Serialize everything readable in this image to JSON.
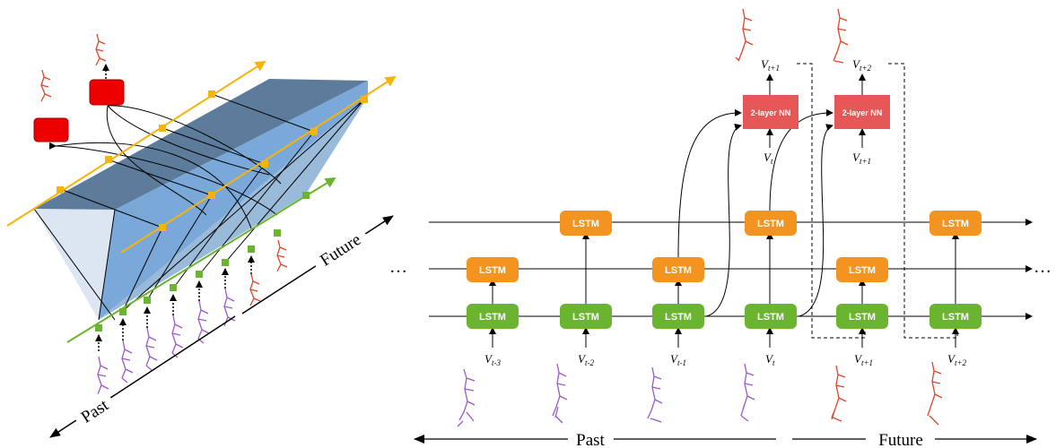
{
  "colors": {
    "lstm_green": "#6ab42f",
    "lstm_orange": "#f39320",
    "nn_red": "#e65757",
    "red_box": "#ee0000",
    "plane_top": "#5d7c9c",
    "plane_side": "#7aa8d8",
    "plane_back": "#d6e2f0",
    "axis_yellow": "#f6b40a",
    "axis_green": "#6ab42f",
    "skeleton_past": "#9b59c9",
    "skeleton_future": "#e0442c"
  },
  "left_panel": {
    "past_label": "Past",
    "future_label": "Future"
  },
  "right_panel": {
    "lstm_label": "LSTM",
    "nn_label": "2-layer NN",
    "ellipsis": "…",
    "past_label": "Past",
    "future_label": "Future",
    "inputs": [
      {
        "base": "V",
        "sub": "t-3"
      },
      {
        "base": "V",
        "sub": "t-2"
      },
      {
        "base": "V",
        "sub": "t-1"
      },
      {
        "base": "V",
        "sub": "t"
      },
      {
        "base": "V",
        "sub": "t+1"
      },
      {
        "base": "V",
        "sub": "t+2"
      }
    ],
    "nn_blocks": [
      {
        "input": {
          "base": "V",
          "sub": "t"
        },
        "output": {
          "base": "V",
          "sub": "t+1"
        }
      },
      {
        "input": {
          "base": "V",
          "sub": "t+1"
        },
        "output": {
          "base": "V",
          "sub": "t+2"
        }
      }
    ]
  }
}
